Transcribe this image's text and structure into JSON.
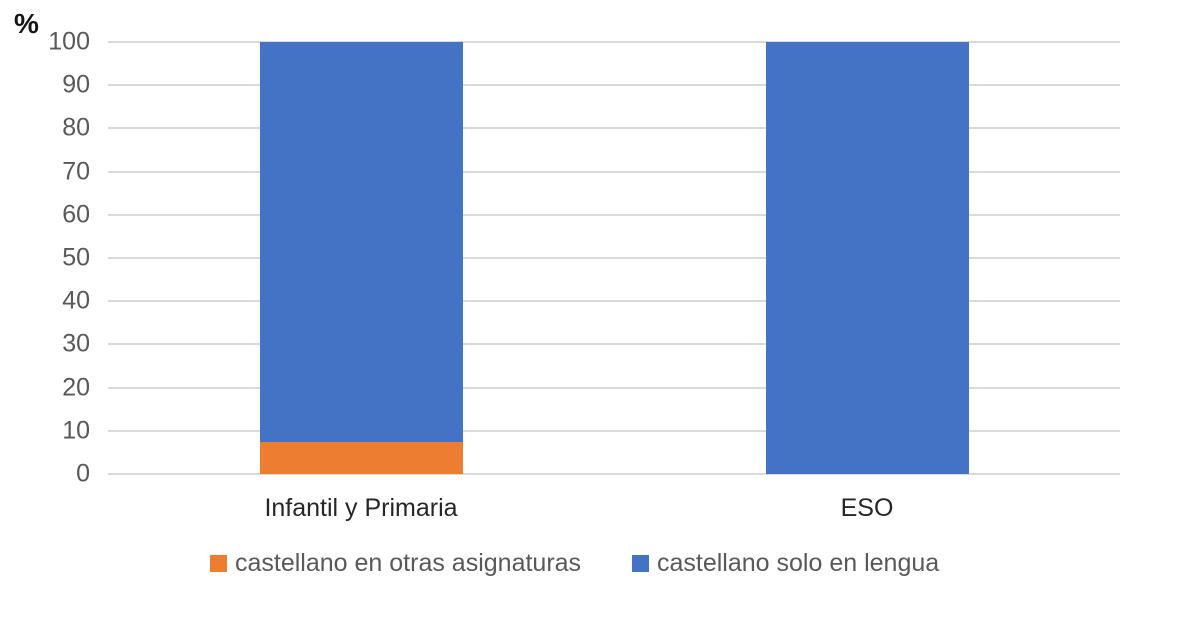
{
  "chart_data": {
    "type": "bar",
    "variant": "stacked-column",
    "title": "",
    "xlabel": "",
    "ylabel": "%",
    "categories": [
      "Infantil y Primaria",
      "ESO"
    ],
    "series": [
      {
        "name": "castellano en otras asignaturas",
        "color": "#ED7D31",
        "values": [
          7.5,
          0
        ]
      },
      {
        "name": "castellano solo en lengua",
        "color": "#4472C4",
        "values": [
          92.5,
          100
        ]
      }
    ],
    "ylim": [
      0,
      100
    ],
    "yticks": [
      0,
      10,
      20,
      30,
      40,
      50,
      60,
      70,
      80,
      90,
      100
    ],
    "grid": true,
    "gridline_color": "#D9D9D9",
    "tick_label_color": "#595959",
    "category_label_color": "#262626",
    "legend_position": "bottom",
    "legend_text_color": "#595959",
    "background": "#FFFFFF"
  }
}
